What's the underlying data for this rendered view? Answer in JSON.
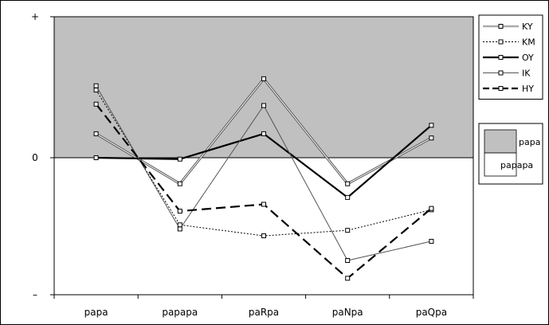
{
  "chart_data": {
    "type": "line",
    "categories": [
      "papa",
      "papapa",
      "paRpa",
      "paNpa",
      "paQpa"
    ],
    "y_tick_labels": [
      {
        "value": 1,
        "label": "+"
      },
      {
        "value": 0,
        "label": "0"
      },
      {
        "value": -1,
        "label": "–"
      }
    ],
    "ylim": [
      -1,
      1
    ],
    "grid": false,
    "series": [
      {
        "name": "KY",
        "values": [
          0.17,
          -0.19,
          0.56,
          -0.19,
          0.14
        ],
        "style": "thin-double"
      },
      {
        "name": "KM",
        "values": [
          0.48,
          -0.49,
          -0.57,
          -0.53,
          -0.38
        ],
        "style": "dotted"
      },
      {
        "name": "OY",
        "values": [
          0.0,
          -0.01,
          0.17,
          -0.29,
          0.23
        ],
        "style": "thick"
      },
      {
        "name": "IK",
        "values": [
          0.51,
          -0.52,
          0.37,
          -0.75,
          -0.61
        ],
        "style": "thin"
      },
      {
        "name": "HY",
        "values": [
          0.38,
          -0.39,
          -0.34,
          -0.88,
          -0.37
        ],
        "style": "dashed"
      }
    ],
    "regions": [
      {
        "label": "papa",
        "from": 0,
        "to": 1,
        "color": "#c0c0c0"
      },
      {
        "label": "papapa",
        "from": -1,
        "to": 0,
        "color": "#ffffff"
      }
    ]
  }
}
